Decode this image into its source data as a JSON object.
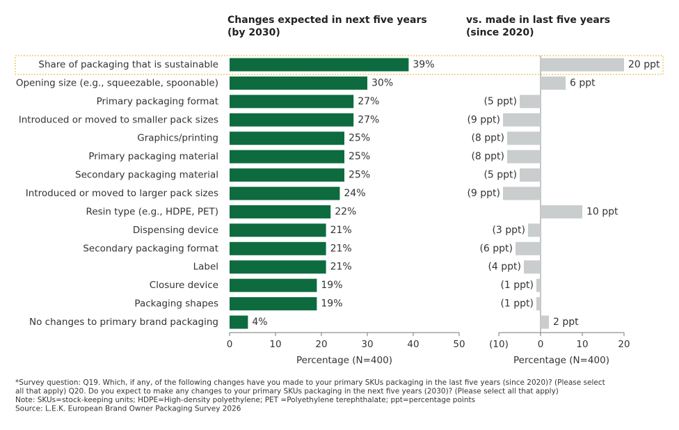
{
  "chart_data": [
    {
      "type": "bar",
      "orientation": "horizontal",
      "title": "Changes expected in next five years",
      "subtitle": "(by 2030)",
      "categories": [
        "Share of packaging that is sustainable",
        "Opening size (e.g., squeezable, spoonable)",
        "Primary packaging format",
        "Introduced or moved to smaller pack sizes",
        "Graphics/printing",
        "Primary packaging material",
        "Secondary packaging material",
        "Introduced or moved to larger pack sizes",
        "Resin type (e.g., HDPE, PET)",
        "Dispensing device",
        "Secondary packaging format",
        "Label",
        "Closure device",
        "Packaging shapes",
        "No changes to primary brand packaging"
      ],
      "values": [
        39,
        30,
        27,
        27,
        25,
        25,
        25,
        24,
        22,
        21,
        21,
        21,
        19,
        19,
        4
      ],
      "value_labels": [
        "39%",
        "30%",
        "27%",
        "27%",
        "25%",
        "25%",
        "25%",
        "24%",
        "22%",
        "21%",
        "21%",
        "21%",
        "19%",
        "19%",
        "4%"
      ],
      "color": "#0e6b3f",
      "xlim": [
        0,
        50
      ],
      "xticks": [
        0,
        10,
        20,
        30,
        40,
        50
      ],
      "xlabel": "Percentage (N=400)"
    },
    {
      "type": "bar",
      "orientation": "horizontal",
      "title": "vs. made in last five years",
      "subtitle": "(since 2020)",
      "values": [
        20,
        6,
        -5,
        -9,
        -8,
        -8,
        -5,
        -9,
        10,
        -3,
        -6,
        -4,
        -1,
        -1,
        2
      ],
      "value_labels": [
        "20 ppt",
        "6 ppt",
        "(5 ppt)",
        "(9 ppt)",
        "(8 ppt)",
        "(8 ppt)",
        "(5 ppt)",
        "(9 ppt)",
        "10 ppt",
        "(3 ppt)",
        "(6 ppt)",
        "(4 ppt)",
        "(1 ppt)",
        "(1 ppt)",
        "2 ppt"
      ],
      "color": "#c9cdcd",
      "xlim": [
        -10,
        20
      ],
      "xticks": [
        {
          "value": -10,
          "label": "(10)"
        },
        0,
        10,
        20
      ],
      "xlabel": "Percentage (N=400)"
    }
  ],
  "notes": [
    "*Survey question: Q19. Which, if any, of the following changes have you made to your primary SKUs packaging in the last five years (since 2020)? (Please select",
    "all that apply) Q20. Do you expect to make any changes to your primary SKUs packaging in the next five years (2030)? (Please select all that apply)",
    "Note: SKUs=stock-keeping units; HDPE=High-density polyethylene; PET =Polyethylene terephthalate; ppt=percentage points",
    "Source: L.E.K. European Brand Owner Packaging Survey 2026"
  ]
}
